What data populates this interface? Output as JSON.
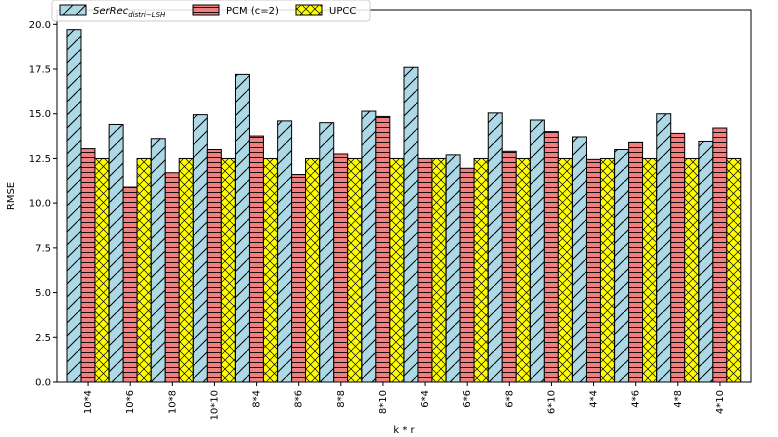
{
  "chart_data": {
    "type": "bar",
    "xlabel": "k * r",
    "ylabel": "RMSE",
    "ylim": [
      0,
      20.8
    ],
    "yticks": [
      "0.0",
      "2.5",
      "5.0",
      "7.5",
      "10.0",
      "12.5",
      "15.0",
      "17.5",
      "20.0"
    ],
    "ytick_values": [
      0,
      2.5,
      5,
      7.5,
      10,
      12.5,
      15,
      17.5,
      20
    ],
    "grid": false,
    "legend_position": "top-left",
    "categories": [
      "10*4",
      "10*6",
      "10*8",
      "10*10",
      "8*4",
      "8*6",
      "8*8",
      "8*10",
      "6*4",
      "6*6",
      "6*8",
      "6*10",
      "4*4",
      "4*6",
      "4*8",
      "4*10"
    ],
    "series": [
      {
        "name_main": "SerRec",
        "name_sub": "distri−LSH",
        "color": "#add8e6",
        "hatch": "diagonal",
        "values": [
          19.7,
          14.4,
          13.6,
          14.95,
          17.2,
          14.6,
          14.5,
          15.15,
          17.6,
          12.7,
          15.05,
          14.65,
          13.7,
          13.0,
          15.0,
          13.45
        ]
      },
      {
        "name": "PCM (c=2)",
        "color": "#f08080",
        "hatch": "horizontal",
        "values": [
          13.05,
          10.9,
          11.7,
          13.0,
          13.75,
          11.6,
          12.75,
          14.85,
          12.5,
          11.95,
          12.9,
          14.0,
          12.45,
          13.4,
          13.9,
          14.2
        ]
      },
      {
        "name": "UPCC",
        "color": "#ffff00",
        "hatch": "cross",
        "values": [
          12.5,
          12.5,
          12.5,
          12.5,
          12.5,
          12.5,
          12.5,
          12.5,
          12.5,
          12.5,
          12.5,
          12.5,
          12.5,
          12.5,
          12.5,
          12.5
        ]
      }
    ]
  }
}
